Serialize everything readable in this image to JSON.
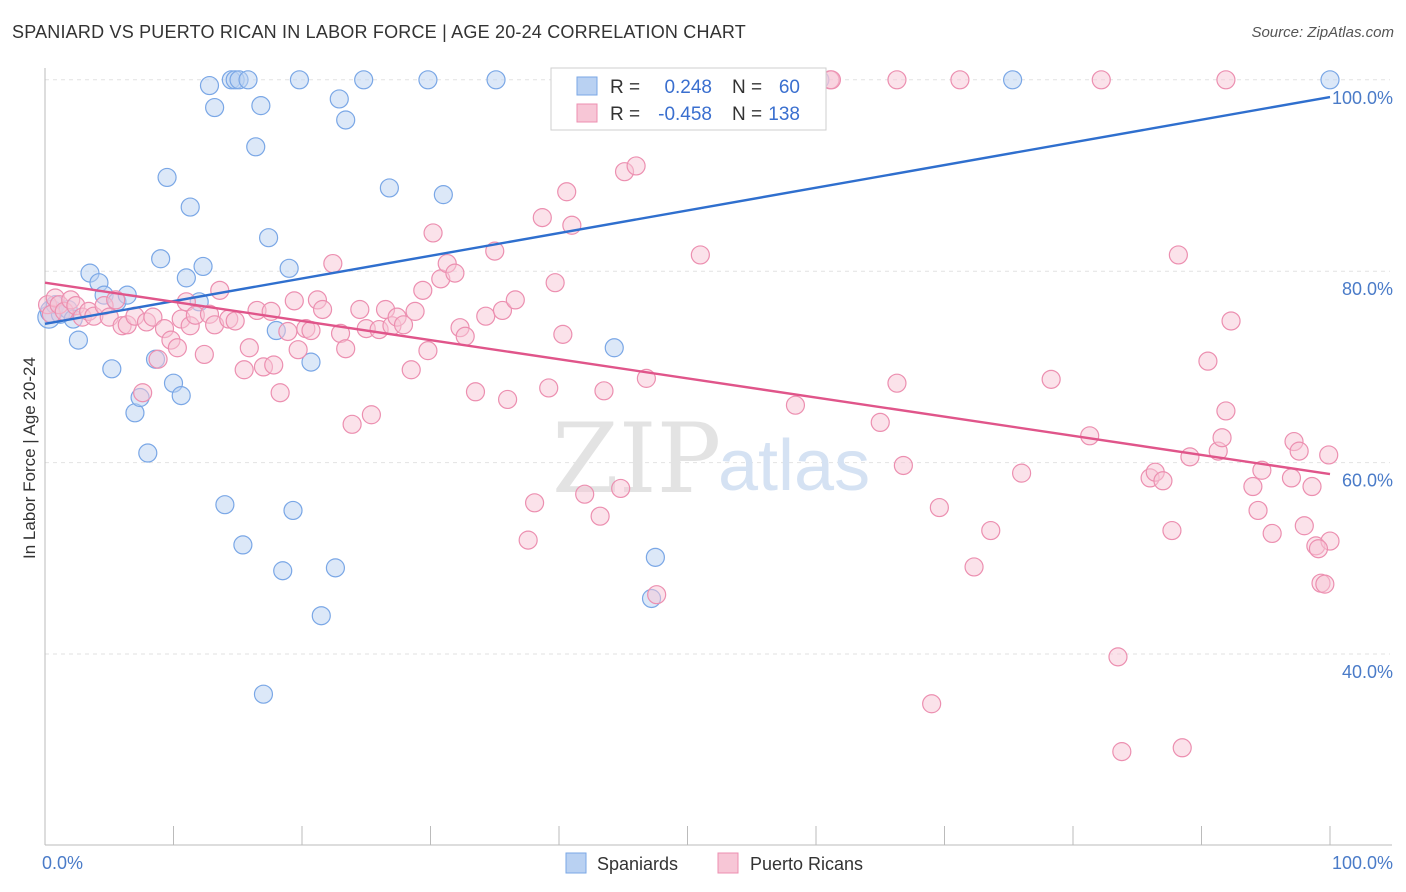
{
  "title": "SPANIARD VS PUERTO RICAN IN LABOR FORCE | AGE 20-24 CORRELATION CHART",
  "source": "Source: ZipAtlas.com",
  "watermark": {
    "part1": "ZIP",
    "part2": "atlas"
  },
  "chart_data": {
    "type": "scatter",
    "title": "SPANIARD VS PUERTO RICAN IN LABOR FORCE | AGE 20-24 CORRELATION CHART",
    "xlabel": "",
    "ylabel": "In Labor Force | Age 20-24",
    "xlim": [
      0,
      100
    ],
    "ylim": [
      20,
      102
    ],
    "x_tick_labels": [
      "0.0%",
      "100.0%"
    ],
    "y_ticks": [
      40,
      60,
      80,
      100
    ],
    "y_tick_labels": [
      "40.0%",
      "60.0%",
      "80.0%",
      "100.0%"
    ],
    "legend": {
      "entries": [
        {
          "r_label": "R =",
          "r_value": "0.248",
          "n_label": "N =",
          "n_value": "60"
        },
        {
          "r_label": "R =",
          "r_value": "-0.458",
          "n_label": "N =",
          "n_value": "138"
        }
      ]
    },
    "series": [
      {
        "name": "Spaniards",
        "color": "#7aa7e6",
        "fill": "#b9d1f2",
        "trend": {
          "x0": 0,
          "y0": 74.5,
          "x1": 100,
          "y1": 98.2,
          "color": "#2f6fce"
        },
        "points": [
          [
            0.3,
            75.2
          ],
          [
            0.5,
            75.8
          ],
          [
            0.8,
            76.5
          ],
          [
            1.2,
            75.5
          ],
          [
            1.8,
            76.0
          ],
          [
            2.2,
            75.0
          ],
          [
            2.6,
            72.8
          ],
          [
            3.5,
            79.8
          ],
          [
            4.2,
            78.8
          ],
          [
            4.6,
            77.5
          ],
          [
            5.2,
            69.8
          ],
          [
            5.6,
            76.8
          ],
          [
            6.4,
            77.5
          ],
          [
            7.0,
            65.2
          ],
          [
            7.4,
            66.8
          ],
          [
            8.0,
            61.0
          ],
          [
            8.6,
            70.8
          ],
          [
            9.0,
            81.3
          ],
          [
            9.5,
            89.8
          ],
          [
            10.0,
            68.3
          ],
          [
            10.6,
            67.0
          ],
          [
            11.0,
            79.3
          ],
          [
            11.3,
            86.7
          ],
          [
            12.0,
            76.8
          ],
          [
            12.3,
            80.5
          ],
          [
            12.8,
            99.4
          ],
          [
            13.2,
            97.1
          ],
          [
            14.0,
            55.6
          ],
          [
            14.5,
            100.0
          ],
          [
            14.8,
            100.0
          ],
          [
            15.1,
            100.0
          ],
          [
            15.4,
            51.4
          ],
          [
            15.8,
            100.0
          ],
          [
            16.4,
            93.0
          ],
          [
            16.8,
            97.3
          ],
          [
            17.4,
            83.5
          ],
          [
            18.0,
            73.8
          ],
          [
            18.5,
            48.7
          ],
          [
            19.0,
            80.3
          ],
          [
            19.3,
            55.0
          ],
          [
            19.8,
            100.0
          ],
          [
            20.7,
            70.5
          ],
          [
            21.5,
            44.0
          ],
          [
            22.6,
            49.0
          ],
          [
            22.9,
            98.0
          ],
          [
            23.4,
            95.8
          ],
          [
            17.0,
            35.8
          ],
          [
            24.8,
            100.0
          ],
          [
            26.8,
            88.7
          ],
          [
            29.8,
            100.0
          ],
          [
            31.0,
            88.0
          ],
          [
            35.1,
            100.0
          ],
          [
            44.3,
            72.0
          ],
          [
            47.2,
            45.8
          ],
          [
            47.5,
            50.1
          ],
          [
            53.5,
            100.0
          ],
          [
            56.0,
            100.0
          ],
          [
            60.3,
            100.0
          ],
          [
            75.3,
            100.0
          ],
          [
            100.0,
            100.0
          ]
        ]
      },
      {
        "name": "Puerto Ricans",
        "color": "#ec8fb0",
        "fill": "#f7c6d6",
        "trend": {
          "x0": 0,
          "y0": 78.8,
          "x1": 100,
          "y1": 58.8,
          "color": "#e0558a"
        },
        "points": [
          [
            0.2,
            76.5
          ],
          [
            0.5,
            75.5
          ],
          [
            0.8,
            77.2
          ],
          [
            1.1,
            76.5
          ],
          [
            1.5,
            75.8
          ],
          [
            2.0,
            77.0
          ],
          [
            2.4,
            76.4
          ],
          [
            2.9,
            75.2
          ],
          [
            3.4,
            75.8
          ],
          [
            3.8,
            75.3
          ],
          [
            4.6,
            76.4
          ],
          [
            5.0,
            75.2
          ],
          [
            5.5,
            77.0
          ],
          [
            6.0,
            74.3
          ],
          [
            6.4,
            74.4
          ],
          [
            7.0,
            75.3
          ],
          [
            7.6,
            67.3
          ],
          [
            7.9,
            74.7
          ],
          [
            8.4,
            75.2
          ],
          [
            8.8,
            70.8
          ],
          [
            9.3,
            74.0
          ],
          [
            9.8,
            72.8
          ],
          [
            10.3,
            72.0
          ],
          [
            10.6,
            75.0
          ],
          [
            11.0,
            76.8
          ],
          [
            11.3,
            74.3
          ],
          [
            11.7,
            75.4
          ],
          [
            12.4,
            71.3
          ],
          [
            12.8,
            75.5
          ],
          [
            13.2,
            74.4
          ],
          [
            13.6,
            78.0
          ],
          [
            14.3,
            75.0
          ],
          [
            14.8,
            74.8
          ],
          [
            15.5,
            69.7
          ],
          [
            15.9,
            72.0
          ],
          [
            16.5,
            75.9
          ],
          [
            17.0,
            70.0
          ],
          [
            17.6,
            75.8
          ],
          [
            17.8,
            70.2
          ],
          [
            18.3,
            67.3
          ],
          [
            18.9,
            73.7
          ],
          [
            19.4,
            76.9
          ],
          [
            19.7,
            71.8
          ],
          [
            20.3,
            74.0
          ],
          [
            20.7,
            73.8
          ],
          [
            21.2,
            77.0
          ],
          [
            21.6,
            76.0
          ],
          [
            22.4,
            80.8
          ],
          [
            23.0,
            73.5
          ],
          [
            23.4,
            71.9
          ],
          [
            23.9,
            64.0
          ],
          [
            24.5,
            76.0
          ],
          [
            25.0,
            74.0
          ],
          [
            25.4,
            65.0
          ],
          [
            26.0,
            73.9
          ],
          [
            26.5,
            76.0
          ],
          [
            27.0,
            74.3
          ],
          [
            27.4,
            75.2
          ],
          [
            27.9,
            74.4
          ],
          [
            28.5,
            69.7
          ],
          [
            28.8,
            75.8
          ],
          [
            29.4,
            78.0
          ],
          [
            29.8,
            71.7
          ],
          [
            30.2,
            84.0
          ],
          [
            30.8,
            79.2
          ],
          [
            31.3,
            80.8
          ],
          [
            31.9,
            79.8
          ],
          [
            32.3,
            74.1
          ],
          [
            32.7,
            73.2
          ],
          [
            33.5,
            67.4
          ],
          [
            34.3,
            75.3
          ],
          [
            35.0,
            82.1
          ],
          [
            35.6,
            75.9
          ],
          [
            36.0,
            66.6
          ],
          [
            36.6,
            77.0
          ],
          [
            37.6,
            51.9
          ],
          [
            38.1,
            55.8
          ],
          [
            38.7,
            85.6
          ],
          [
            39.2,
            67.8
          ],
          [
            39.7,
            78.8
          ],
          [
            40.3,
            73.4
          ],
          [
            40.6,
            88.3
          ],
          [
            41.0,
            84.8
          ],
          [
            42.0,
            56.7
          ],
          [
            43.2,
            54.4
          ],
          [
            43.5,
            67.5
          ],
          [
            44.8,
            57.3
          ],
          [
            45.1,
            90.4
          ],
          [
            46.0,
            91.0
          ],
          [
            46.8,
            68.8
          ],
          [
            47.6,
            46.2
          ],
          [
            51.0,
            81.7
          ],
          [
            58.4,
            66.0
          ],
          [
            61.1,
            100.0
          ],
          [
            65.0,
            64.2
          ],
          [
            66.3,
            68.3
          ],
          [
            66.8,
            59.7
          ],
          [
            69.0,
            34.8
          ],
          [
            69.6,
            55.3
          ],
          [
            72.3,
            49.1
          ],
          [
            73.6,
            52.9
          ],
          [
            76.0,
            58.9
          ],
          [
            78.3,
            68.7
          ],
          [
            81.3,
            62.8
          ],
          [
            83.5,
            39.7
          ],
          [
            83.8,
            29.8
          ],
          [
            86.0,
            58.4
          ],
          [
            86.4,
            59.0
          ],
          [
            87.0,
            58.1
          ],
          [
            87.7,
            52.9
          ],
          [
            88.2,
            81.7
          ],
          [
            88.5,
            30.2
          ],
          [
            89.1,
            60.6
          ],
          [
            90.5,
            70.6
          ],
          [
            91.3,
            61.2
          ],
          [
            91.6,
            62.6
          ],
          [
            91.9,
            65.4
          ],
          [
            92.3,
            74.8
          ],
          [
            94.0,
            57.5
          ],
          [
            94.4,
            55.0
          ],
          [
            94.7,
            59.2
          ],
          [
            95.5,
            52.6
          ],
          [
            97.0,
            58.4
          ],
          [
            97.2,
            62.2
          ],
          [
            97.6,
            61.2
          ],
          [
            98.0,
            53.4
          ],
          [
            98.6,
            57.5
          ],
          [
            98.9,
            51.3
          ],
          [
            99.3,
            47.4
          ],
          [
            99.6,
            47.3
          ],
          [
            99.9,
            60.8
          ],
          [
            100.0,
            51.8
          ],
          [
            99.1,
            51.0
          ],
          [
            61.2,
            100.0
          ],
          [
            71.2,
            100.0
          ],
          [
            82.2,
            100.0
          ],
          [
            91.9,
            100.0
          ],
          [
            66.3,
            100.0
          ]
        ]
      }
    ]
  },
  "bottom_legend": [
    {
      "label": "Spaniards"
    },
    {
      "label": "Puerto Ricans"
    }
  ]
}
